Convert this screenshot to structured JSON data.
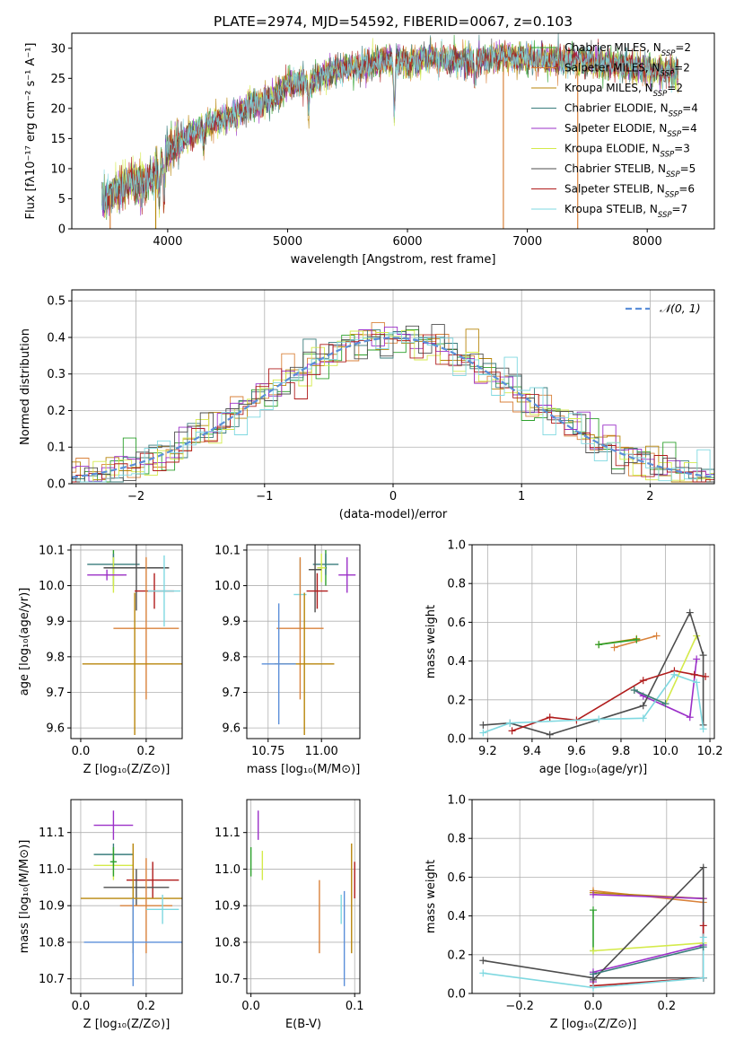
{
  "title": "PLATE=2974, MJD=54592, FIBERID=0067, z=0.103",
  "colors": {
    "Chabrier MILES": "#2ca02c",
    "Salpeter MILES": "#d9823b",
    "Kroupa MILES": "#b8860b",
    "Chabrier ELODIE": "#3a7d7d",
    "Salpeter ELODIE": "#9b30c8",
    "Kroupa ELODIE": "#d4ea4a",
    "Chabrier STELIB": "#4d4d4d",
    "Salpeter STELIB": "#b01c1c",
    "Kroupa STELIB": "#7fd8e0",
    "normal": "#5b8fd9",
    "grid": "#b0b0b0"
  },
  "chart_data": [
    {
      "id": "spectrum",
      "type": "line",
      "title": "PLATE=2974, MJD=54592, FIBERID=0067, z=0.103",
      "xlabel": "wavelength [Angstrom, rest frame]",
      "ylabel": "Flux [fλ10⁻¹⁷ erg cm⁻² s⁻¹ A⁻¹]",
      "xlim": [
        3200,
        8560
      ],
      "ylim": [
        0,
        32.5
      ],
      "xticks": [
        4000,
        5000,
        6000,
        7000,
        8000
      ],
      "yticks": [
        0,
        5,
        10,
        15,
        20,
        25,
        30
      ],
      "grid": false,
      "legend_position": "right",
      "legend": [
        {
          "label": "Chabrier MILES, N",
          "sub": "SSP",
          "suffix": "=2"
        },
        {
          "label": "Salpeter MILES, N",
          "sub": "SSP",
          "suffix": "=2"
        },
        {
          "label": "Kroupa MILES, N",
          "sub": "SSP",
          "suffix": "=2"
        },
        {
          "label": "Chabrier ELODIE, N",
          "sub": "SSP",
          "suffix": "=4"
        },
        {
          "label": "Salpeter ELODIE, N",
          "sub": "SSP",
          "suffix": "=4"
        },
        {
          "label": "Kroupa ELODIE, N",
          "sub": "SSP",
          "suffix": "=3"
        },
        {
          "label": "Chabrier STELIB, N",
          "sub": "SSP",
          "suffix": "=5"
        },
        {
          "label": "Salpeter STELIB, N",
          "sub": "SSP",
          "suffix": "=6"
        },
        {
          "label": "Kroupa STELIB, N",
          "sub": "SSP",
          "suffix": "=7"
        }
      ],
      "continuum": {
        "x": [
          3450,
          3600,
          3700,
          3800,
          3900,
          4000,
          4100,
          4300,
          4500,
          4700,
          4900,
          5000,
          5200,
          5400,
          5600,
          5800,
          6000,
          6200,
          6400,
          6600,
          6800,
          7000,
          7200,
          7400,
          7600,
          7800,
          8000,
          8200
        ],
        "y": [
          5,
          6.5,
          8,
          7.5,
          9,
          13,
          14.5,
          17,
          18.5,
          20.5,
          22,
          24,
          24.5,
          26.5,
          27,
          28,
          27.5,
          28.5,
          28,
          28,
          28.5,
          28.5,
          28,
          28,
          27.5,
          27,
          26.5,
          26
        ]
      },
      "absorption": [
        {
          "x": 3930,
          "y": 5
        },
        {
          "x": 3970,
          "y": 6
        },
        {
          "x": 4300,
          "y": 14.5
        },
        {
          "x": 5175,
          "y": 20
        },
        {
          "x": 5890,
          "y": 19
        },
        {
          "x": 6563,
          "y": 24
        }
      ],
      "spikes": [
        {
          "x": 3520,
          "y": 0,
          "series": "Salpeter MILES"
        },
        {
          "x": 3900,
          "y": 0,
          "series": "Kroupa MILES"
        },
        {
          "x": 6800,
          "y": 0,
          "series": "Salpeter MILES"
        },
        {
          "x": 7420,
          "y": 0,
          "series": "Salpeter MILES"
        }
      ]
    },
    {
      "id": "residuals",
      "type": "bar",
      "xlabel": "(data-model)/error",
      "ylabel": "Normed distribution",
      "xlim": [
        -2.5,
        2.5
      ],
      "ylim": [
        0,
        0.53
      ],
      "xticks": [
        -2,
        -1,
        0,
        1,
        2
      ],
      "yticks": [
        0.0,
        0.1,
        0.2,
        0.3,
        0.4,
        0.5
      ],
      "grid": true,
      "legend_position": "top-right",
      "legend": [
        "𝒩(0, 1)"
      ],
      "bin_width": 0.1
    },
    {
      "id": "age-Z",
      "type": "scatter",
      "xlabel": "Z [log₁₀(Z/Z⊙)]",
      "ylabel": "age [log₁₀(age/yr)]",
      "xlim": [
        -0.03,
        0.31
      ],
      "ylim": [
        9.57,
        10.115
      ],
      "xticks": [
        0.0,
        0.2
      ],
      "yticks": [
        9.6,
        9.7,
        9.8,
        9.9,
        10.0,
        10.1
      ],
      "grid": true,
      "points": [
        {
          "series": "Chabrier MILES",
          "x": 0.1,
          "y": 10.05,
          "xerr": 0.01,
          "yerr": 0.05
        },
        {
          "series": "Chabrier ELODIE",
          "x": 0.1,
          "y": 10.06,
          "xerr": 0.08,
          "yerr": 0.03
        },
        {
          "series": "Kroupa ELODIE",
          "x": 0.1,
          "y": 10.03,
          "xerr": 0.03,
          "yerr": 0.05
        },
        {
          "series": "Salpeter ELODIE",
          "x": 0.08,
          "y": 10.03,
          "xerr": 0.06,
          "yerr": 0.015
        },
        {
          "series": "Chabrier STELIB",
          "x": 0.17,
          "y": 10.05,
          "xerr": 0.1,
          "yerr": 0.12
        },
        {
          "series": "Salpeter STELIB",
          "x": 0.225,
          "y": 9.985,
          "xerr": 0.06,
          "yerr": 0.05
        },
        {
          "series": "Kroupa STELIB",
          "x": 0.255,
          "y": 9.985,
          "xerr": 0.05,
          "yerr": 0.1
        },
        {
          "series": "Salpeter MILES",
          "x": 0.2,
          "y": 9.88,
          "xerr": 0.1,
          "yerr": 0.2
        },
        {
          "series": "Kroupa MILES",
          "x": 0.165,
          "y": 9.78,
          "xerr": 0.16,
          "yerr": 0.2
        }
      ]
    },
    {
      "id": "age-mass",
      "type": "scatter",
      "xlabel": "mass [log₁₀(M/M⊙)]",
      "ylabel": "",
      "xlim": [
        10.65,
        11.18
      ],
      "ylim": [
        9.57,
        10.115
      ],
      "xticks": [
        10.75,
        11.0
      ],
      "yticks": [
        9.6,
        9.7,
        9.8,
        9.9,
        10.0,
        10.1
      ],
      "grid": true,
      "points": [
        {
          "series": "Chabrier MILES",
          "x": 11.02,
          "y": 10.05,
          "xerr": 0.005,
          "yerr": 0.05
        },
        {
          "series": "Chabrier ELODIE",
          "x": 11.02,
          "y": 10.06,
          "xerr": 0.06,
          "yerr": 0.03
        },
        {
          "series": "Kroupa ELODIE",
          "x": 11.0,
          "y": 10.05,
          "xerr": 0.02,
          "yerr": 0.04
        },
        {
          "series": "Salpeter ELODIE",
          "x": 11.12,
          "y": 10.03,
          "xerr": 0.04,
          "yerr": 0.05
        },
        {
          "series": "Chabrier STELIB",
          "x": 10.97,
          "y": 10.045,
          "xerr": 0.03,
          "yerr": 0.12
        },
        {
          "series": "Salpeter STELIB",
          "x": 10.98,
          "y": 9.985,
          "xerr": 0.05,
          "yerr": 0.05
        },
        {
          "series": "Kroupa STELIB",
          "x": 10.9,
          "y": 9.975,
          "xerr": 0.03,
          "yerr": 0.1
        },
        {
          "series": "Salpeter MILES",
          "x": 10.9,
          "y": 9.88,
          "xerr": 0.11,
          "yerr": 0.2
        },
        {
          "series": "Kroupa MILES",
          "x": 10.92,
          "y": 9.78,
          "xerr": 0.14,
          "yerr": 0.2
        },
        {
          "series": "normal",
          "x": 10.8,
          "y": 9.78,
          "xerr": 0.08,
          "yerr": 0.17
        }
      ]
    },
    {
      "id": "weights-age",
      "type": "line",
      "xlabel": "age [log₁₀(age/yr)]",
      "ylabel": "mass weight",
      "xlim": [
        9.13,
        10.22
      ],
      "ylim": [
        0,
        1.0
      ],
      "xticks": [
        9.2,
        9.4,
        9.6,
        9.8,
        10.0,
        10.2
      ],
      "yticks": [
        0.0,
        0.2,
        0.4,
        0.6,
        0.8,
        1.0
      ],
      "grid": true,
      "series": [
        {
          "name": "Salpeter MILES",
          "x": [
            9.77,
            9.96
          ],
          "y": [
            0.47,
            0.53
          ]
        },
        {
          "name": "Kroupa MILES",
          "x": [
            9.7,
            9.87
          ],
          "y": [
            0.485,
            0.515
          ]
        },
        {
          "name": "Chabrier MILES",
          "x": [
            9.7,
            9.87
          ],
          "y": [
            0.485,
            0.51
          ]
        },
        {
          "name": "Salpeter ELODIE",
          "x": [
            9.86,
            9.9,
            10.11,
            10.14
          ],
          "y": [
            0.25,
            0.22,
            0.11,
            0.41
          ]
        },
        {
          "name": "Kroupa ELODIE",
          "x": [
            9.86,
            10.0,
            10.14
          ],
          "y": [
            0.25,
            0.18,
            0.53
          ]
        },
        {
          "name": "Chabrier STELIB",
          "x": [
            9.18,
            9.3,
            9.48,
            9.9,
            10.11,
            10.17,
            10.17
          ],
          "y": [
            0.07,
            0.08,
            0.02,
            0.17,
            0.65,
            0.43,
            0.07
          ]
        },
        {
          "name": "Salpeter STELIB",
          "x": [
            9.31,
            9.48,
            9.6,
            9.9,
            10.04,
            10.13,
            10.18
          ],
          "y": [
            0.04,
            0.11,
            0.095,
            0.3,
            0.35,
            0.33,
            0.32
          ]
        },
        {
          "name": "Kroupa STELIB",
          "x": [
            9.18,
            9.3,
            9.7,
            9.9,
            10.04,
            10.14,
            10.17
          ],
          "y": [
            0.03,
            0.08,
            0.1,
            0.105,
            0.33,
            0.29,
            0.05
          ]
        },
        {
          "name": "Chabrier ELODIE",
          "x": [
            9.86,
            10.0
          ],
          "y": [
            0.25,
            0.18
          ]
        }
      ]
    },
    {
      "id": "mass-Z",
      "type": "scatter",
      "xlabel": "Z [log₁₀(Z/Z⊙)]",
      "ylabel": "mass [log₁₀(M/M⊙)]",
      "xlim": [
        -0.03,
        0.31
      ],
      "ylim": [
        10.66,
        11.19
      ],
      "xticks": [
        0.0,
        0.2
      ],
      "yticks": [
        10.7,
        10.8,
        10.9,
        11.0,
        11.1
      ],
      "grid": true,
      "points": [
        {
          "series": "Salpeter ELODIE",
          "x": 0.1,
          "y": 11.12,
          "xerr": 0.06,
          "yerr": 0.04
        },
        {
          "series": "Chabrier ELODIE",
          "x": 0.1,
          "y": 11.04,
          "xerr": 0.06,
          "yerr": 0.03
        },
        {
          "series": "Kroupa ELODIE",
          "x": 0.1,
          "y": 11.01,
          "xerr": 0.06,
          "yerr": 0.04
        },
        {
          "series": "Chabrier MILES",
          "x": 0.1,
          "y": 11.02,
          "xerr": 0.01,
          "yerr": 0.04
        },
        {
          "series": "Salpeter STELIB",
          "x": 0.22,
          "y": 10.97,
          "xerr": 0.08,
          "yerr": 0.05
        },
        {
          "series": "Chabrier STELIB",
          "x": 0.17,
          "y": 10.95,
          "xerr": 0.1,
          "yerr": 0.05
        },
        {
          "series": "Kroupa MILES",
          "x": 0.16,
          "y": 10.92,
          "xerr": 0.16,
          "yerr": 0.15
        },
        {
          "series": "Salpeter MILES",
          "x": 0.2,
          "y": 10.9,
          "xerr": 0.08,
          "yerr": 0.13
        },
        {
          "series": "Kroupa STELIB",
          "x": 0.25,
          "y": 10.89,
          "xerr": 0.05,
          "yerr": 0.04
        },
        {
          "series": "normal",
          "x": 0.16,
          "y": 10.8,
          "xerr": 0.15,
          "yerr": 0.12
        }
      ]
    },
    {
      "id": "mass-ebv",
      "type": "scatter",
      "xlabel": "E(B-V)",
      "ylabel": "",
      "xlim": [
        -0.004,
        0.105
      ],
      "ylim": [
        10.66,
        11.19
      ],
      "xticks": [
        0.0,
        0.1
      ],
      "yticks": [
        10.7,
        10.8,
        10.9,
        11.0,
        11.1
      ],
      "grid": true,
      "points": [
        {
          "series": "Salpeter ELODIE",
          "x": 0.007,
          "y": 11.12,
          "xerr": 0,
          "yerr": 0.04
        },
        {
          "series": "Chabrier MILES",
          "x": 0.0,
          "y": 11.02,
          "xerr": 0,
          "yerr": 0.04
        },
        {
          "series": "Kroupa ELODIE",
          "x": 0.011,
          "y": 11.01,
          "xerr": 0,
          "yerr": 0.04
        },
        {
          "series": "Salpeter MILES",
          "x": 0.066,
          "y": 10.87,
          "xerr": 0,
          "yerr": 0.1
        },
        {
          "series": "normal",
          "x": 0.09,
          "y": 10.81,
          "xerr": 0,
          "yerr": 0.13
        },
        {
          "series": "Kroupa STELIB",
          "x": 0.087,
          "y": 10.89,
          "xerr": 0,
          "yerr": 0.04
        },
        {
          "series": "Kroupa MILES",
          "x": 0.097,
          "y": 10.92,
          "xerr": 0,
          "yerr": 0.15
        },
        {
          "series": "Salpeter STELIB",
          "x": 0.1,
          "y": 10.97,
          "xerr": 0,
          "yerr": 0.05
        }
      ]
    },
    {
      "id": "weights-Z",
      "type": "line",
      "xlabel": "Z [log₁₀(Z/Z⊙)]",
      "ylabel": "mass weight",
      "xlim": [
        -0.33,
        0.33
      ],
      "ylim": [
        0,
        1.0
      ],
      "xticks": [
        -0.2,
        0.0,
        0.2
      ],
      "yticks": [
        0.0,
        0.2,
        0.4,
        0.6,
        0.8,
        1.0
      ],
      "grid": true,
      "series": [
        {
          "name": "Salpeter MILES",
          "x": [
            0.0,
            0.3
          ],
          "y": [
            0.53,
            0.47
          ]
        },
        {
          "name": "Kroupa MILES",
          "x": [
            0.0,
            0.3
          ],
          "y": [
            0.52,
            0.49
          ]
        },
        {
          "name": "Chabrier MILES",
          "x": [
            0.0,
            0.0
          ],
          "y": [
            0.43,
            0.22
          ]
        },
        {
          "name": "Salpeter ELODIE",
          "x": [
            0.0,
            0.3,
            0.3,
            0.0,
            0.0
          ],
          "y": [
            0.51,
            0.49,
            0.25,
            0.11,
            0.06
          ]
        },
        {
          "name": "Kroupa ELODIE",
          "x": [
            0.0,
            0.3
          ],
          "y": [
            0.22,
            0.26
          ]
        },
        {
          "name": "Chabrier STELIB",
          "x": [
            -0.3,
            0.0,
            0.3,
            0.3,
            0.0
          ],
          "y": [
            0.17,
            0.08,
            0.08,
            0.65,
            0.07
          ]
        },
        {
          "name": "Salpeter STELIB",
          "x": [
            0.0,
            0.3,
            0.3
          ],
          "y": [
            0.04,
            0.08,
            0.35
          ]
        },
        {
          "name": "Kroupa STELIB",
          "x": [
            -0.3,
            0.0,
            0.3,
            0.3
          ],
          "y": [
            0.105,
            0.03,
            0.08,
            0.29
          ]
        },
        {
          "name": "Chabrier ELODIE",
          "x": [
            0.0,
            0.3
          ],
          "y": [
            0.1,
            0.24
          ]
        }
      ]
    }
  ]
}
